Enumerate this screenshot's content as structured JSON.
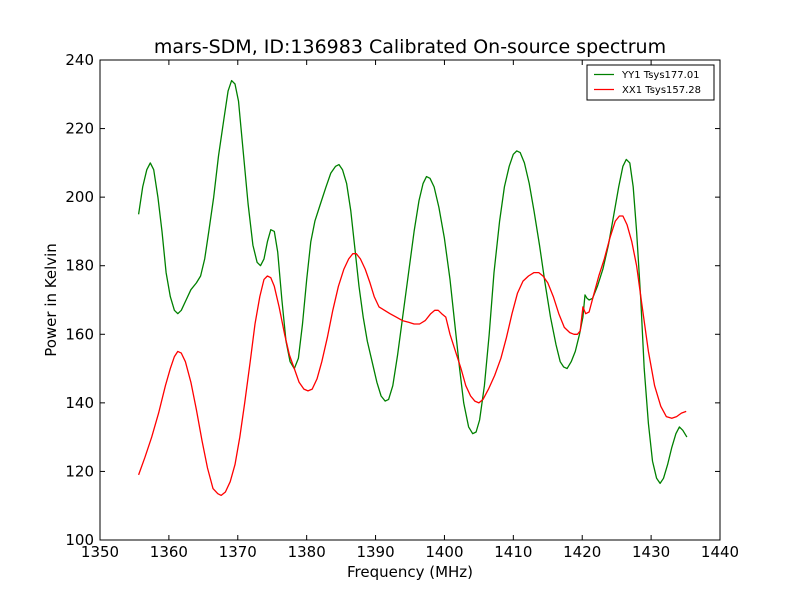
{
  "chart_data": {
    "type": "line",
    "title": "mars-SDM, ID:136983 Calibrated On-source spectrum",
    "xlabel": "Frequency (MHz)",
    "ylabel": "Power in Kelvin",
    "xlim": [
      1350,
      1440
    ],
    "ylim": [
      100,
      240
    ],
    "xticks": [
      1350,
      1360,
      1370,
      1380,
      1390,
      1400,
      1410,
      1420,
      1430,
      1440
    ],
    "yticks": [
      100,
      120,
      140,
      160,
      180,
      200,
      220,
      240
    ],
    "grid": false,
    "legend_position": "top-right",
    "series": [
      {
        "name": "YY1 Tsys177.01",
        "color": "#008000",
        "points": [
          [
            1355.6,
            195
          ],
          [
            1356.2,
            203
          ],
          [
            1356.8,
            208
          ],
          [
            1357.3,
            210
          ],
          [
            1357.8,
            208
          ],
          [
            1358.4,
            200
          ],
          [
            1359.0,
            190
          ],
          [
            1359.6,
            178
          ],
          [
            1360.2,
            171
          ],
          [
            1360.8,
            167
          ],
          [
            1361.3,
            166
          ],
          [
            1361.8,
            167
          ],
          [
            1362.5,
            170
          ],
          [
            1363.2,
            173
          ],
          [
            1364.0,
            175
          ],
          [
            1364.6,
            177
          ],
          [
            1365.2,
            182
          ],
          [
            1365.8,
            190
          ],
          [
            1366.5,
            200
          ],
          [
            1367.2,
            212
          ],
          [
            1368.0,
            223
          ],
          [
            1368.6,
            231
          ],
          [
            1369.1,
            234
          ],
          [
            1369.6,
            233
          ],
          [
            1370.1,
            228
          ],
          [
            1370.8,
            213
          ],
          [
            1371.5,
            198
          ],
          [
            1372.2,
            186
          ],
          [
            1372.8,
            181
          ],
          [
            1373.3,
            180
          ],
          [
            1373.8,
            182
          ],
          [
            1374.3,
            187
          ],
          [
            1374.8,
            190.5
          ],
          [
            1375.3,
            190
          ],
          [
            1375.8,
            184
          ],
          [
            1376.4,
            170
          ],
          [
            1377.0,
            158
          ],
          [
            1377.6,
            152
          ],
          [
            1378.2,
            150
          ],
          [
            1378.8,
            153
          ],
          [
            1379.4,
            163
          ],
          [
            1380.0,
            176
          ],
          [
            1380.6,
            187
          ],
          [
            1381.2,
            193
          ],
          [
            1382.0,
            198
          ],
          [
            1382.8,
            203
          ],
          [
            1383.5,
            207
          ],
          [
            1384.2,
            209
          ],
          [
            1384.7,
            209.5
          ],
          [
            1385.2,
            208
          ],
          [
            1385.8,
            204
          ],
          [
            1386.4,
            196
          ],
          [
            1387.0,
            185
          ],
          [
            1387.6,
            174
          ],
          [
            1388.2,
            165
          ],
          [
            1388.8,
            158
          ],
          [
            1389.5,
            152
          ],
          [
            1390.2,
            146
          ],
          [
            1390.8,
            142
          ],
          [
            1391.4,
            140.5
          ],
          [
            1391.9,
            141
          ],
          [
            1392.5,
            145
          ],
          [
            1393.2,
            154
          ],
          [
            1394.0,
            166
          ],
          [
            1394.8,
            178
          ],
          [
            1395.6,
            190
          ],
          [
            1396.3,
            199
          ],
          [
            1396.9,
            204
          ],
          [
            1397.4,
            206
          ],
          [
            1397.9,
            205.5
          ],
          [
            1398.5,
            203
          ],
          [
            1399.2,
            197
          ],
          [
            1400.0,
            188
          ],
          [
            1400.8,
            176
          ],
          [
            1401.5,
            163
          ],
          [
            1402.2,
            150
          ],
          [
            1402.8,
            140
          ],
          [
            1403.5,
            133
          ],
          [
            1404.1,
            131
          ],
          [
            1404.6,
            131.5
          ],
          [
            1405.1,
            135
          ],
          [
            1405.8,
            145
          ],
          [
            1406.5,
            160
          ],
          [
            1407.2,
            178
          ],
          [
            1408.0,
            193
          ],
          [
            1408.7,
            203
          ],
          [
            1409.4,
            209
          ],
          [
            1410.0,
            212.5
          ],
          [
            1410.5,
            213.5
          ],
          [
            1411.0,
            213
          ],
          [
            1411.6,
            210
          ],
          [
            1412.3,
            204
          ],
          [
            1413.0,
            196
          ],
          [
            1413.8,
            186
          ],
          [
            1414.6,
            175
          ],
          [
            1415.4,
            165
          ],
          [
            1416.2,
            157
          ],
          [
            1416.8,
            152
          ],
          [
            1417.3,
            150.5
          ],
          [
            1417.8,
            150
          ],
          [
            1418.4,
            152
          ],
          [
            1419.0,
            155
          ],
          [
            1419.6,
            160
          ],
          [
            1420.1,
            165
          ],
          [
            1420.4,
            171.5
          ],
          [
            1420.7,
            170.5
          ],
          [
            1421.0,
            170
          ],
          [
            1421.5,
            170.5
          ],
          [
            1422.2,
            174
          ],
          [
            1423.0,
            179
          ],
          [
            1423.8,
            186
          ],
          [
            1424.6,
            195
          ],
          [
            1425.3,
            203
          ],
          [
            1425.9,
            209
          ],
          [
            1426.4,
            211
          ],
          [
            1426.9,
            210
          ],
          [
            1427.4,
            203
          ],
          [
            1427.9,
            190
          ],
          [
            1428.5,
            170
          ],
          [
            1429.0,
            150
          ],
          [
            1429.6,
            134
          ],
          [
            1430.2,
            123
          ],
          [
            1430.8,
            118
          ],
          [
            1431.3,
            116.5
          ],
          [
            1431.8,
            118
          ],
          [
            1432.4,
            122
          ],
          [
            1433.0,
            127
          ],
          [
            1433.6,
            131
          ],
          [
            1434.1,
            133
          ],
          [
            1434.6,
            132
          ],
          [
            1435.2,
            130
          ]
        ]
      },
      {
        "name": "XX1 Tsys157.28",
        "color": "#ff0000",
        "points": [
          [
            1355.6,
            119
          ],
          [
            1356.5,
            124
          ],
          [
            1357.5,
            130
          ],
          [
            1358.5,
            137
          ],
          [
            1359.5,
            145
          ],
          [
            1360.2,
            150
          ],
          [
            1360.8,
            153.5
          ],
          [
            1361.3,
            155
          ],
          [
            1361.8,
            154.5
          ],
          [
            1362.4,
            152
          ],
          [
            1363.2,
            146
          ],
          [
            1364.0,
            138
          ],
          [
            1364.8,
            129
          ],
          [
            1365.6,
            121
          ],
          [
            1366.4,
            115
          ],
          [
            1367.1,
            113.5
          ],
          [
            1367.6,
            113
          ],
          [
            1368.2,
            114
          ],
          [
            1368.9,
            117
          ],
          [
            1369.6,
            122
          ],
          [
            1370.3,
            130
          ],
          [
            1371.0,
            140
          ],
          [
            1371.8,
            152
          ],
          [
            1372.5,
            163
          ],
          [
            1373.2,
            171
          ],
          [
            1373.8,
            176
          ],
          [
            1374.3,
            177
          ],
          [
            1374.8,
            176.5
          ],
          [
            1375.3,
            174
          ],
          [
            1376.0,
            168
          ],
          [
            1376.8,
            160
          ],
          [
            1377.5,
            154
          ],
          [
            1378.2,
            150
          ],
          [
            1378.9,
            146
          ],
          [
            1379.6,
            144
          ],
          [
            1380.2,
            143.5
          ],
          [
            1380.8,
            144
          ],
          [
            1381.5,
            147
          ],
          [
            1382.2,
            152
          ],
          [
            1383.0,
            159
          ],
          [
            1383.8,
            167
          ],
          [
            1384.6,
            174
          ],
          [
            1385.4,
            179
          ],
          [
            1386.1,
            182
          ],
          [
            1386.7,
            183.5
          ],
          [
            1387.2,
            183.5
          ],
          [
            1387.8,
            182
          ],
          [
            1388.5,
            179
          ],
          [
            1389.2,
            175
          ],
          [
            1389.8,
            171
          ],
          [
            1390.5,
            168
          ],
          [
            1391.3,
            167
          ],
          [
            1392.1,
            166
          ],
          [
            1393.0,
            165
          ],
          [
            1393.9,
            164
          ],
          [
            1394.8,
            163.5
          ],
          [
            1395.6,
            163
          ],
          [
            1396.4,
            163
          ],
          [
            1397.2,
            164
          ],
          [
            1398.0,
            166
          ],
          [
            1398.6,
            167
          ],
          [
            1399.1,
            167
          ],
          [
            1399.6,
            166
          ],
          [
            1400.2,
            165
          ],
          [
            1400.8,
            160
          ],
          [
            1401.6,
            155
          ],
          [
            1402.4,
            150
          ],
          [
            1403.1,
            145
          ],
          [
            1403.8,
            142
          ],
          [
            1404.4,
            140.5
          ],
          [
            1405.0,
            140
          ],
          [
            1405.6,
            141
          ],
          [
            1406.4,
            144
          ],
          [
            1407.3,
            148
          ],
          [
            1408.2,
            153
          ],
          [
            1409.0,
            159
          ],
          [
            1409.8,
            166
          ],
          [
            1410.6,
            172
          ],
          [
            1411.4,
            175.5
          ],
          [
            1412.2,
            177
          ],
          [
            1413.0,
            178
          ],
          [
            1413.7,
            178
          ],
          [
            1414.3,
            177
          ],
          [
            1415.0,
            175
          ],
          [
            1415.8,
            171
          ],
          [
            1416.6,
            166
          ],
          [
            1417.4,
            162
          ],
          [
            1418.2,
            160.5
          ],
          [
            1418.8,
            160
          ],
          [
            1419.3,
            160
          ],
          [
            1419.7,
            161
          ],
          [
            1420.1,
            168
          ],
          [
            1420.5,
            166
          ],
          [
            1421.0,
            166.5
          ],
          [
            1421.6,
            171
          ],
          [
            1422.4,
            177
          ],
          [
            1423.2,
            182
          ],
          [
            1424.0,
            188
          ],
          [
            1424.8,
            193
          ],
          [
            1425.4,
            194.5
          ],
          [
            1425.9,
            194.5
          ],
          [
            1426.5,
            192
          ],
          [
            1427.2,
            187
          ],
          [
            1427.9,
            180
          ],
          [
            1428.7,
            168
          ],
          [
            1429.6,
            155
          ],
          [
            1430.5,
            145
          ],
          [
            1431.4,
            139
          ],
          [
            1432.2,
            136
          ],
          [
            1433.0,
            135.5
          ],
          [
            1433.7,
            136
          ],
          [
            1434.4,
            137
          ],
          [
            1435.1,
            137.5
          ]
        ]
      }
    ]
  }
}
